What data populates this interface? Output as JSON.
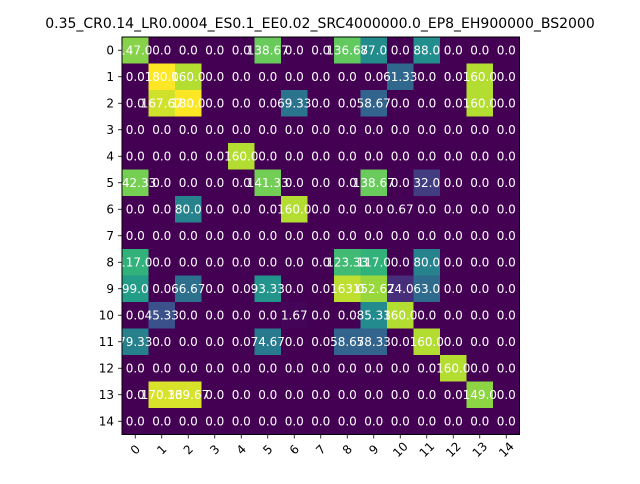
{
  "chart_data": {
    "type": "heatmap",
    "title": "0.35_CR0.14_LR0.0004_ES0.1_EE0.02_SRC4000000.0_EP8_EH900000_BS2000",
    "xlabel": "",
    "ylabel": "",
    "x_tick_labels": [
      "0",
      "1",
      "2",
      "3",
      "4",
      "5",
      "6",
      "7",
      "8",
      "9",
      "10",
      "11",
      "12",
      "13",
      "14"
    ],
    "y_tick_labels": [
      "0",
      "1",
      "2",
      "3",
      "4",
      "5",
      "6",
      "7",
      "8",
      "9",
      "10",
      "11",
      "12",
      "13",
      "14"
    ],
    "colormap": "viridis",
    "vmin": 0,
    "vmax": 180,
    "grid": false,
    "legend": "none",
    "cells": [
      [
        "147.0",
        "0.0",
        "0.0",
        "0.0",
        "0.0",
        "138.67",
        "0.0",
        "0.0",
        "136.67",
        "87.0",
        "0.0",
        "88.0",
        "0.0",
        "0.0",
        "0.0"
      ],
      [
        "0.0",
        "180.0",
        "160.0",
        "0.0",
        "0.0",
        "0.0",
        "0.0",
        "0.0",
        "0.0",
        "0.0",
        "61.33",
        "0.0",
        "0.0",
        "160.0",
        "0.0"
      ],
      [
        "0.0",
        "167.67",
        "180.0",
        "0.0",
        "0.0",
        "0.0",
        "69.33",
        "0.0",
        "0.0",
        "58.67",
        "0.0",
        "0.0",
        "0.0",
        "160.0",
        "0.0"
      ],
      [
        "0.0",
        "0.0",
        "0.0",
        "0.0",
        "0.0",
        "0.0",
        "0.0",
        "0.0",
        "0.0",
        "0.0",
        "0.0",
        "0.0",
        "0.0",
        "0.0",
        "0.0"
      ],
      [
        "0.0",
        "0.0",
        "0.0",
        "0.0",
        "160.0",
        "0.0",
        "0.0",
        "0.0",
        "0.0",
        "0.0",
        "0.0",
        "0.0",
        "0.0",
        "0.0",
        "0.0"
      ],
      [
        "142.33",
        "0.0",
        "0.0",
        "0.0",
        "0.0",
        "141.33",
        "0.0",
        "0.0",
        "0.0",
        "138.67",
        "0.0",
        "32.0",
        "0.0",
        "0.0",
        "0.0"
      ],
      [
        "0.0",
        "0.0",
        "80.0",
        "0.0",
        "0.0",
        "0.0",
        "160.0",
        "0.0",
        "0.0",
        "0.0",
        "0.67",
        "0.0",
        "0.0",
        "0.0",
        "0.0"
      ],
      [
        "0.0",
        "0.0",
        "0.0",
        "0.0",
        "0.0",
        "0.0",
        "0.0",
        "0.0",
        "0.0",
        "0.0",
        "0.0",
        "0.0",
        "0.0",
        "0.0",
        "0.0"
      ],
      [
        "117.0",
        "0.0",
        "0.0",
        "0.0",
        "0.0",
        "0.0",
        "0.0",
        "0.0",
        "123.33",
        "117.0",
        "0.0",
        "80.0",
        "0.0",
        "0.0",
        "0.0"
      ],
      [
        "99.0",
        "0.0",
        "66.67",
        "0.0",
        "0.0",
        "93.33",
        "0.0",
        "0.0",
        "163.0",
        "152.67",
        "24.0",
        "63.0",
        "0.0",
        "0.0",
        "0.0"
      ],
      [
        "0.0",
        "45.33",
        "0.0",
        "0.0",
        "0.0",
        "0.0",
        "1.67",
        "0.0",
        "0.0",
        "85.33",
        "160.0",
        "0.0",
        "0.0",
        "0.0",
        "0.0"
      ],
      [
        "79.33",
        "0.0",
        "0.0",
        "0.0",
        "0.0",
        "74.67",
        "0.0",
        "0.0",
        "58.67",
        "58.33",
        "0.0",
        "160.0",
        "0.0",
        "0.0",
        "0.0"
      ],
      [
        "0.0",
        "0.0",
        "0.0",
        "0.0",
        "0.0",
        "0.0",
        "0.0",
        "0.0",
        "0.0",
        "0.0",
        "0.0",
        "0.0",
        "160.0",
        "0.0",
        "0.0"
      ],
      [
        "0.0",
        "170.33",
        "169.67",
        "0.0",
        "0.0",
        "0.0",
        "0.0",
        "0.0",
        "0.0",
        "0.0",
        "0.0",
        "0.0",
        "0.0",
        "149.0",
        "0.0"
      ],
      [
        "0.0",
        "0.0",
        "0.0",
        "0.0",
        "0.0",
        "0.0",
        "0.0",
        "0.0",
        "0.0",
        "0.0",
        "0.0",
        "0.0",
        "0.0",
        "0.0",
        "0.0"
      ]
    ]
  }
}
